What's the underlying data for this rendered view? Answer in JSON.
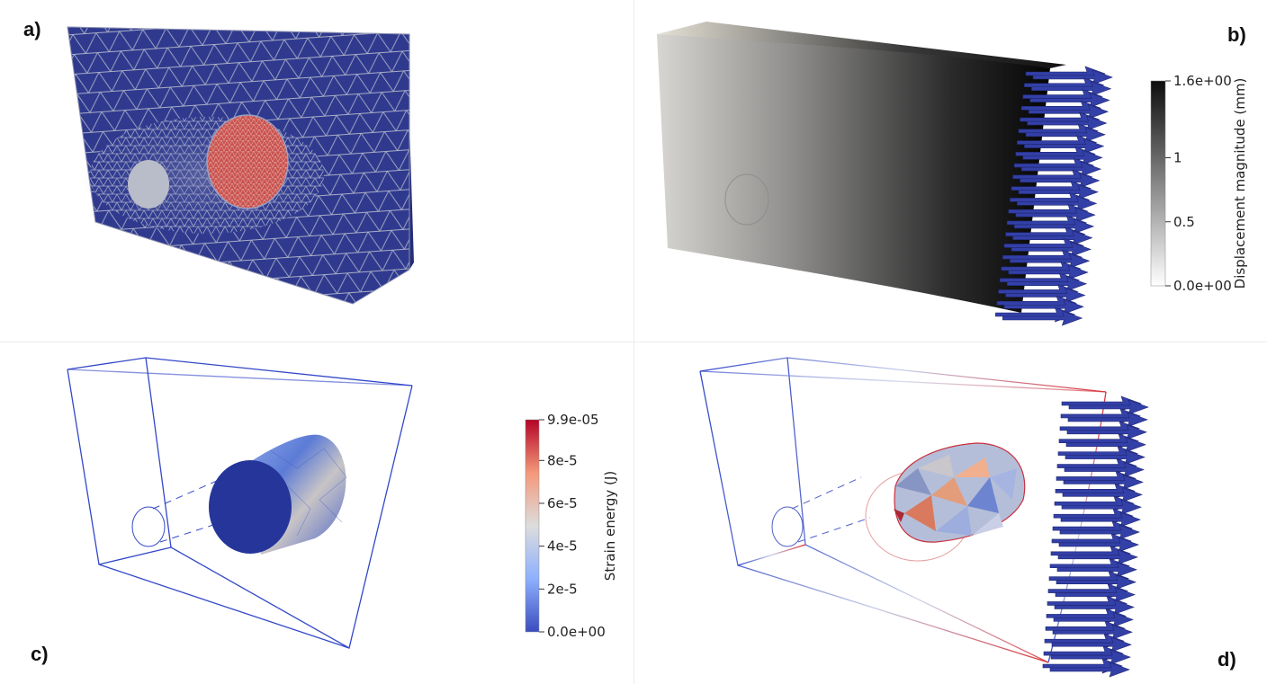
{
  "panels": {
    "a": {
      "label": "a)"
    },
    "b": {
      "label": "b)",
      "colorbar": {
        "title": "Displacement magnitude (mm)",
        "ticks": [
          "1.6e+00",
          "1",
          "0.5",
          "0.0e+00"
        ],
        "colors": [
          "#0d0d0d",
          "#ffffff"
        ]
      }
    },
    "c": {
      "label": "c)",
      "colorbar": {
        "title": "Strain energy (J)",
        "ticks": [
          "9.9e-05",
          "8e-5",
          "6e-5",
          "4e-5",
          "2e-5",
          "0.0e+00"
        ],
        "colors": [
          "#b40426",
          "#f4987a",
          "#dddddd",
          "#8db0fe",
          "#3b4cc0"
        ]
      }
    },
    "d": {
      "label": "d)"
    }
  },
  "colors": {
    "mesh_blue": "#2f3a8f",
    "mesh_line": "#a9adc4",
    "inclusion_red": "#c9534f",
    "arrow_blue": "#3340a8",
    "wire_blue": "#3348c8",
    "wire_red": "#d9343a"
  }
}
